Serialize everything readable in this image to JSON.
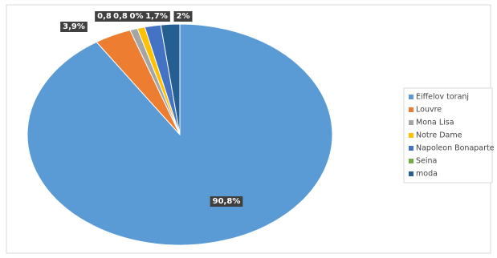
{
  "chart_data": {
    "type": "pie",
    "categories": [
      "Eiffelov toranj",
      "Louvre",
      "Mona Lisa",
      "Notre Dame",
      "Napoleon Bonaparte",
      "Seina",
      "moda"
    ],
    "values": [
      90.8,
      3.9,
      0.8,
      0.8,
      1.7,
      0,
      2
    ],
    "value_labels": [
      "90,8%",
      "3,9%",
      "0,8%",
      "0,8%",
      "1,7%",
      "0%",
      "2%"
    ],
    "colors": [
      "#5b9bd5",
      "#ed7d31",
      "#a5a5a5",
      "#ffc000",
      "#4472c4",
      "#70ad47",
      "#255e91"
    ],
    "legend": "right"
  }
}
